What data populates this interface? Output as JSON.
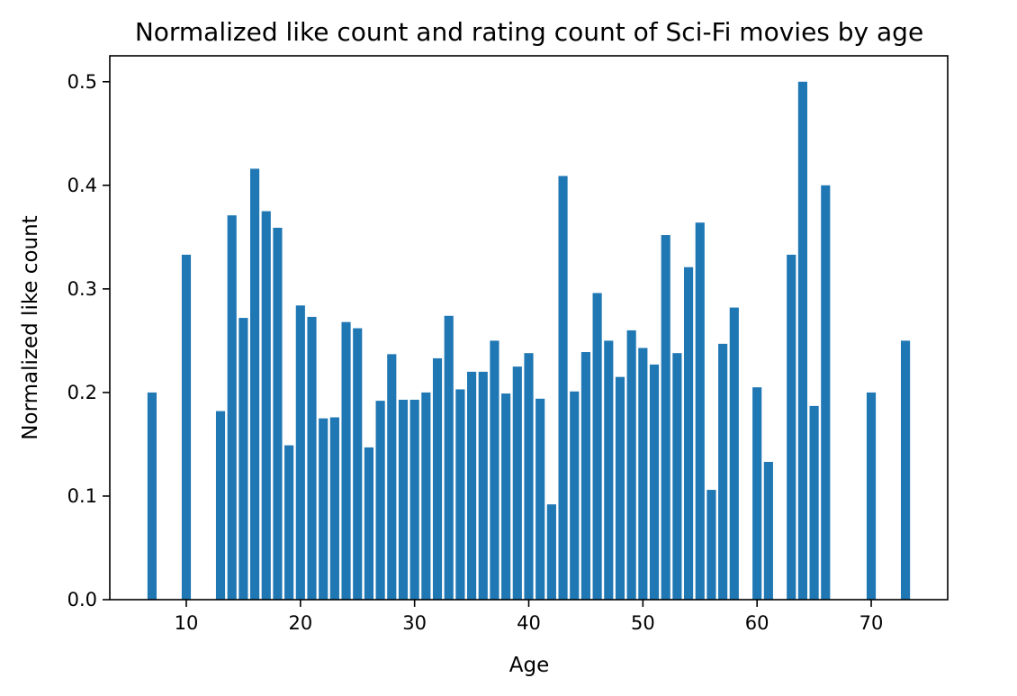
{
  "chart_data": {
    "type": "bar",
    "title": "Normalized like count and rating count of Sci-Fi movies by age",
    "xlabel": "Age",
    "ylabel": "Normalized like count",
    "xlim": [
      3.3,
      76.7
    ],
    "ylim": [
      0,
      0.525
    ],
    "xticks": [
      10,
      20,
      30,
      40,
      50,
      60,
      70
    ],
    "yticks": [
      0.0,
      0.1,
      0.2,
      0.3,
      0.4,
      0.5
    ],
    "ytick_labels": [
      "0.0",
      "0.1",
      "0.2",
      "0.3",
      "0.4",
      "0.5"
    ],
    "grid": false,
    "bar_width": 0.8,
    "colors": {
      "bar": "#1f77b4",
      "axes": "#000000",
      "background": "#ffffff"
    },
    "x": [
      7,
      10,
      13,
      14,
      15,
      16,
      17,
      18,
      19,
      20,
      21,
      22,
      23,
      24,
      25,
      26,
      27,
      28,
      29,
      30,
      31,
      32,
      33,
      34,
      35,
      36,
      37,
      38,
      39,
      40,
      41,
      42,
      43,
      44,
      45,
      46,
      47,
      48,
      49,
      50,
      51,
      52,
      53,
      54,
      55,
      56,
      57,
      58,
      60,
      61,
      63,
      64,
      65,
      66,
      70,
      73
    ],
    "values": [
      0.2,
      0.333,
      0.182,
      0.371,
      0.272,
      0.416,
      0.375,
      0.359,
      0.149,
      0.284,
      0.273,
      0.175,
      0.176,
      0.268,
      0.262,
      0.147,
      0.192,
      0.237,
      0.193,
      0.193,
      0.2,
      0.233,
      0.274,
      0.203,
      0.22,
      0.22,
      0.25,
      0.199,
      0.225,
      0.238,
      0.194,
      0.092,
      0.409,
      0.201,
      0.239,
      0.296,
      0.25,
      0.215,
      0.26,
      0.243,
      0.227,
      0.352,
      0.238,
      0.321,
      0.364,
      0.106,
      0.247,
      0.282,
      0.205,
      0.133,
      0.333,
      0.5,
      0.187,
      0.4,
      0.2,
      0.25
    ]
  }
}
